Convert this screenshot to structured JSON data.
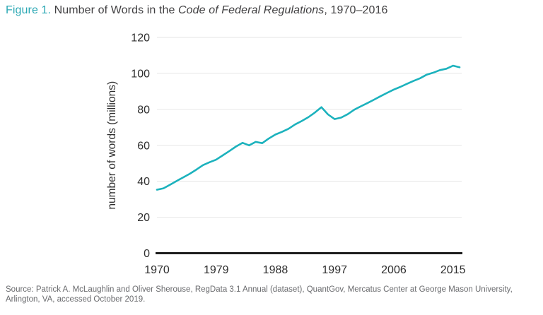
{
  "title": {
    "figure_label": "Figure 1.",
    "text_before_italic": " Number of Words in the ",
    "italic_text": "Code of Federal Regulations",
    "text_after_italic": ", 1970–2016"
  },
  "source": {
    "line1": "Source: Patrick A. McLaughlin and Oliver Sherouse, RegData 3.1 Annual (dataset), QuantGov, Mercatus Center at George Mason University,",
    "line2": "Arlington, VA, accessed October 2019."
  },
  "colors": {
    "accent_teal": "#2BA8B4",
    "line_teal": "#1CB2BD",
    "title_text": "#414042",
    "tick_text": "#2E2E2E",
    "source_text": "#6A6B6E",
    "gridline": "#E6E6E6",
    "baseline": "#1E1E1E"
  },
  "chart_data": {
    "type": "line",
    "title": "Figure 1. Number of Words in the Code of Federal Regulations, 1970–2016",
    "xlabel": "",
    "ylabel": "number of words (millions)",
    "xlim": [
      1970,
      2016
    ],
    "ylim": [
      0,
      120
    ],
    "x_ticks": [
      1970,
      1979,
      1988,
      1997,
      2006,
      2015
    ],
    "y_ticks": [
      0,
      20,
      40,
      60,
      80,
      100,
      120
    ],
    "grid": "horizontal",
    "legend": "none",
    "series": [
      {
        "name": "CFR word count (millions)",
        "x": [
          1970,
          1971,
          1972,
          1973,
          1974,
          1975,
          1976,
          1977,
          1978,
          1979,
          1980,
          1981,
          1982,
          1983,
          1984,
          1985,
          1986,
          1987,
          1988,
          1989,
          1990,
          1991,
          1992,
          1993,
          1994,
          1995,
          1996,
          1997,
          1998,
          1999,
          2000,
          2001,
          2002,
          2003,
          2004,
          2005,
          2006,
          2007,
          2008,
          2009,
          2010,
          2011,
          2012,
          2013,
          2014,
          2015,
          2016
        ],
        "values": [
          35.3,
          36.1,
          38.1,
          40.2,
          42.2,
          44.2,
          46.5,
          49.0,
          50.6,
          52.0,
          54.4,
          56.8,
          59.3,
          61.4,
          60.0,
          61.9,
          61.2,
          63.8,
          66.0,
          67.5,
          69.2,
          71.6,
          73.5,
          75.6,
          78.2,
          81.2,
          77.2,
          74.6,
          75.4,
          77.3,
          79.8,
          81.7,
          83.5,
          85.4,
          87.3,
          89.2,
          91.0,
          92.5,
          94.2,
          95.8,
          97.3,
          99.3,
          100.4,
          101.8,
          102.6,
          104.3,
          103.4
        ]
      }
    ]
  }
}
